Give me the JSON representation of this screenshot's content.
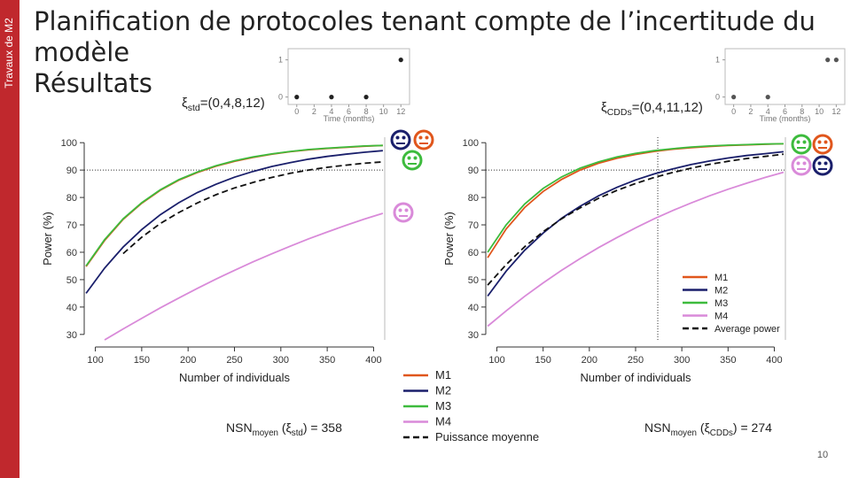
{
  "slide": {
    "side_label": "Travaux de M2",
    "title": [
      "Planification de protocoles tenant compte de l’incertitude du",
      "modèle",
      "Résultats"
    ],
    "page_number": 10
  },
  "chart_data": [
    {
      "type": "scatter",
      "xlabel": "Time (months)",
      "subtitle_parts": [
        "ξ",
        "std",
        "=(0,4,8,12)"
      ],
      "x": [
        0,
        4,
        8,
        12
      ],
      "values": [
        0,
        0,
        0,
        1
      ],
      "color": "#222222",
      "xlim": [
        -1,
        13
      ],
      "ylim": [
        -0.2,
        1.3
      ],
      "xticks": [
        0,
        2,
        4,
        6,
        8,
        10,
        12
      ],
      "yticks": [
        0,
        1
      ]
    },
    {
      "type": "line",
      "xlabel": "Number of individuals",
      "ylabel": "Power (%)",
      "annotation_parts": [
        "NSN",
        "moyen",
        " (ξ",
        "std",
        ") = 358"
      ],
      "x": [
        90,
        110,
        130,
        150,
        170,
        190,
        210,
        230,
        250,
        270,
        290,
        310,
        330,
        350,
        370,
        390,
        410
      ],
      "series": [
        {
          "name": "M1",
          "color": "#e0561c",
          "values": [
            54.8,
            64.3,
            72.0,
            77.9,
            82.6,
            86.3,
            89.1,
            91.4,
            93.2,
            94.6,
            95.8,
            96.7,
            97.4,
            97.9,
            98.3,
            98.7,
            99.0
          ]
        },
        {
          "name": "M2",
          "color": "#1a1f6b",
          "values": [
            45.0,
            54.2,
            61.9,
            68.3,
            73.7,
            78.1,
            81.8,
            84.8,
            87.4,
            89.5,
            91.3,
            92.7,
            94.0,
            95.0,
            95.8,
            96.5,
            97.1
          ]
        },
        {
          "name": "M3",
          "color": "#3dbb3d",
          "values": [
            55.0,
            64.6,
            72.2,
            78.1,
            82.8,
            86.5,
            89.3,
            91.6,
            93.4,
            94.8,
            95.9,
            96.8,
            97.5,
            98.0,
            98.4,
            98.8,
            99.0
          ]
        },
        {
          "name": "M4",
          "color": "#d98ad9",
          "values": [
            null,
            28.0,
            32.0,
            35.9,
            39.7,
            43.3,
            46.8,
            50.2,
            53.4,
            56.5,
            59.4,
            62.2,
            64.9,
            67.4,
            69.8,
            72.1,
            74.2
          ]
        },
        {
          "name": "Puissance moyenne",
          "color": "#111111",
          "dashed": true,
          "values": [
            null,
            null,
            59.5,
            65.5,
            70.5,
            74.5,
            78.0,
            81.0,
            83.5,
            85.5,
            87.3,
            88.8,
            90.0,
            91.0,
            91.8,
            92.5,
            93.0
          ]
        }
      ],
      "hline": 90,
      "legend": "bottom",
      "xlim": [
        88,
        412
      ],
      "ylim": [
        28,
        102
      ],
      "xticks": [
        100,
        150,
        200,
        250,
        300,
        350,
        400
      ],
      "yticks": [
        30,
        40,
        50,
        60,
        70,
        80,
        90,
        100
      ]
    },
    {
      "type": "scatter",
      "xlabel": "Time (months)",
      "subtitle_parts": [
        "ξ",
        "CDDs",
        "=(0,4,11,12)"
      ],
      "x": [
        0,
        4,
        11,
        12
      ],
      "values": [
        0,
        0,
        1,
        1
      ],
      "color": "#555555",
      "xlim": [
        -1,
        13
      ],
      "ylim": [
        -0.2,
        1.3
      ],
      "xticks": [
        0,
        2,
        4,
        6,
        8,
        10,
        12
      ],
      "yticks": [
        0,
        1
      ]
    },
    {
      "type": "line",
      "xlabel": "Number of individuals",
      "ylabel": "Power (%)",
      "annotation_parts": [
        "NSN",
        "moyen",
        " (ξ",
        "CDDs",
        ") = 274"
      ],
      "x": [
        90,
        110,
        130,
        150,
        170,
        190,
        210,
        230,
        250,
        270,
        290,
        310,
        330,
        350,
        370,
        390,
        410
      ],
      "series": [
        {
          "name": "M1",
          "color": "#e0561c",
          "values": [
            58.0,
            68.5,
            76.3,
            82.2,
            86.6,
            90.0,
            92.5,
            94.3,
            95.7,
            96.8,
            97.6,
            98.2,
            98.6,
            99.0,
            99.2,
            99.4,
            99.6
          ]
        },
        {
          "name": "M2",
          "color": "#1a1f6b",
          "values": [
            44.0,
            53.1,
            60.7,
            67.0,
            72.4,
            76.8,
            80.6,
            83.7,
            86.4,
            88.6,
            90.4,
            92.0,
            93.3,
            94.4,
            95.3,
            96.0,
            96.7
          ]
        },
        {
          "name": "M3",
          "color": "#3dbb3d",
          "values": [
            60.0,
            70.0,
            77.6,
            83.3,
            87.5,
            90.7,
            93.0,
            94.8,
            96.1,
            97.1,
            97.8,
            98.4,
            98.8,
            99.1,
            99.3,
            99.5,
            99.6
          ]
        },
        {
          "name": "M4",
          "color": "#d98ad9",
          "values": [
            33.0,
            38.6,
            43.9,
            48.8,
            53.4,
            57.7,
            61.7,
            65.4,
            68.9,
            72.2,
            75.2,
            78.0,
            80.6,
            83.0,
            85.2,
            87.3,
            89.2
          ]
        },
        {
          "name": "Average power",
          "color": "#111111",
          "dashed": true,
          "values": [
            48.0,
            55.5,
            62.0,
            67.5,
            72.2,
            76.2,
            79.7,
            82.6,
            85.1,
            87.3,
            89.1,
            90.7,
            92.1,
            93.2,
            94.2,
            95.0,
            95.8
          ]
        }
      ],
      "hline": 90,
      "vline": 274,
      "legend": "lower right",
      "xlim": [
        88,
        412
      ],
      "ylim": [
        28,
        102
      ],
      "xticks": [
        100,
        150,
        200,
        250,
        300,
        350,
        400
      ],
      "yticks": [
        30,
        40,
        50,
        60,
        70,
        80,
        90,
        100
      ]
    }
  ]
}
